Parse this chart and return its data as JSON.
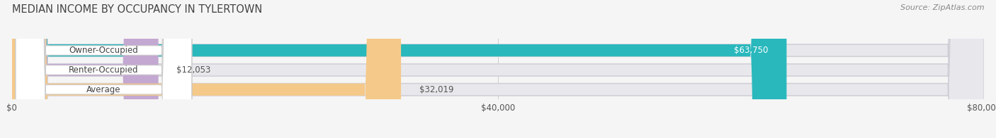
{
  "title": "MEDIAN INCOME BY OCCUPANCY IN TYLERTOWN",
  "source": "Source: ZipAtlas.com",
  "categories": [
    "Owner-Occupied",
    "Renter-Occupied",
    "Average"
  ],
  "values": [
    63750,
    12053,
    32019
  ],
  "labels": [
    "$63,750",
    "$12,053",
    "$32,019"
  ],
  "bar_colors": [
    "#29b8bc",
    "#c3a8d1",
    "#f5c98a"
  ],
  "bar_bg_color": "#e8e8ec",
  "xlim": [
    0,
    80000
  ],
  "xticks": [
    0,
    40000,
    80000
  ],
  "xticklabels": [
    "$0",
    "$40,000",
    "$80,000"
  ],
  "title_fontsize": 10.5,
  "source_fontsize": 8,
  "label_fontsize": 8.5,
  "cat_fontsize": 8.5,
  "bar_height": 0.62,
  "background_color": "#f5f5f5",
  "label_inside_color": [
    "#ffffff",
    "#555555",
    "#555555"
  ],
  "label_inside": [
    true,
    false,
    false
  ]
}
